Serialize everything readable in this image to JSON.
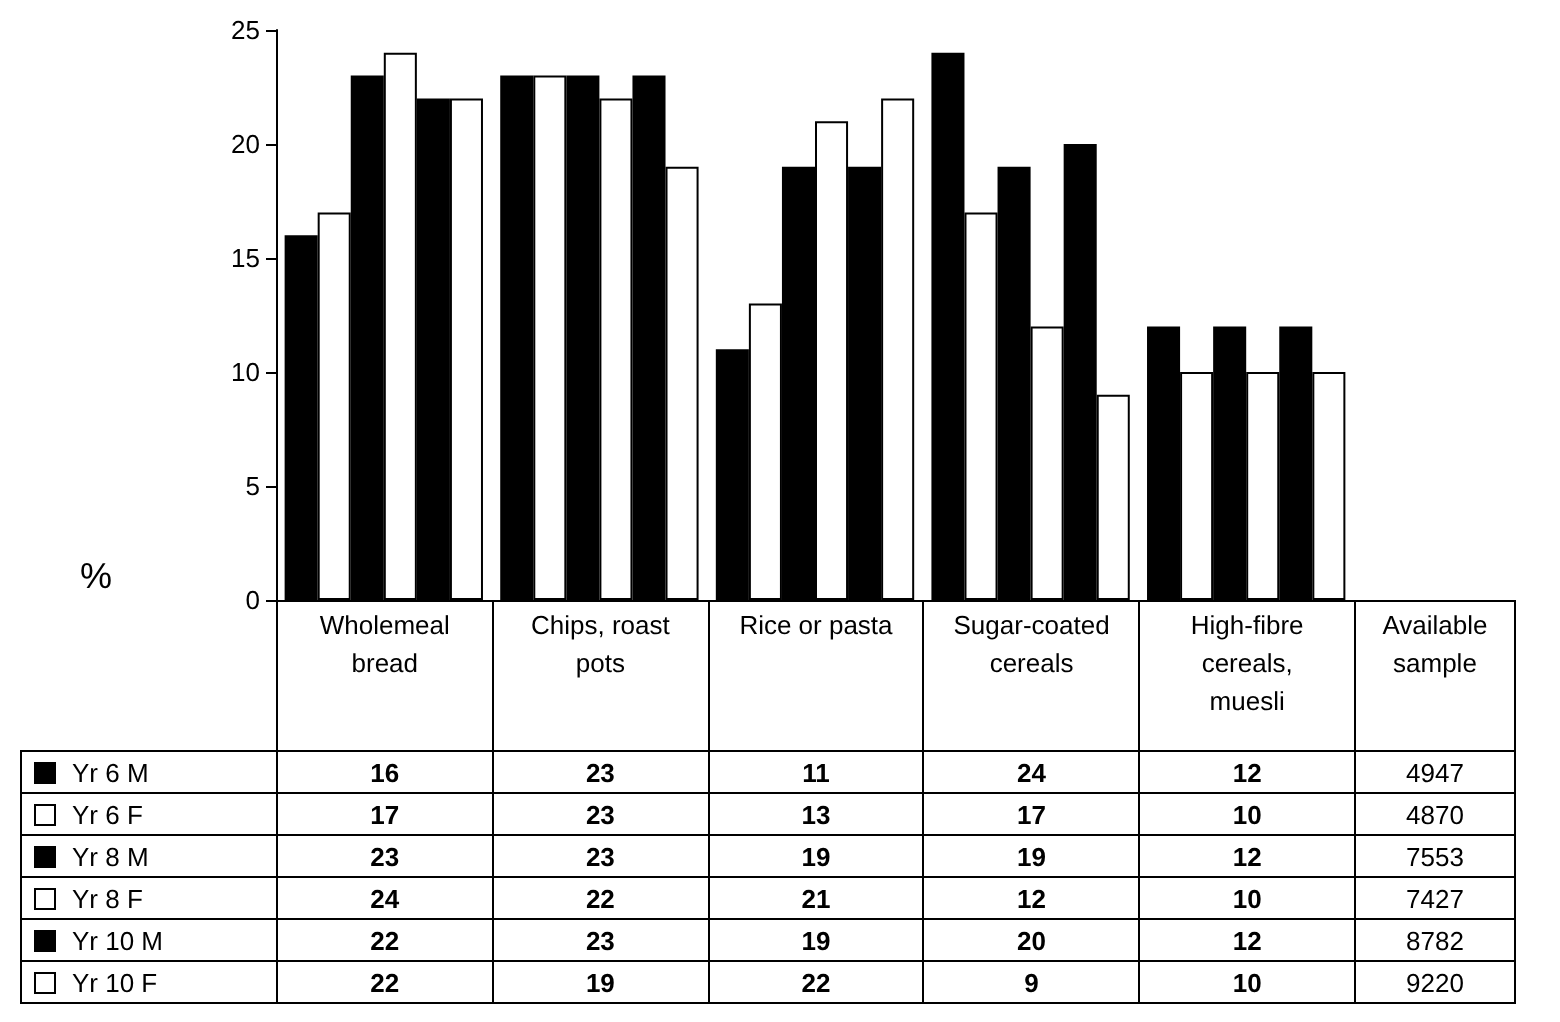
{
  "chart_data": {
    "type": "bar",
    "ylabel": "%",
    "categories": [
      "Wholemeal bread",
      "Chips, roast pots",
      "Rice or pasta",
      "Sugar-coated cereals",
      "High-fibre cereals, muesli"
    ],
    "series": [
      {
        "name": "Yr 6 M",
        "color": "#000000",
        "values": [
          16,
          23,
          11,
          24,
          12
        ]
      },
      {
        "name": "Yr 6 F",
        "color": "#ffffff",
        "values": [
          17,
          23,
          13,
          17,
          10
        ]
      },
      {
        "name": "Yr 8 M",
        "color": "#000000",
        "values": [
          23,
          23,
          19,
          19,
          12
        ]
      },
      {
        "name": "Yr 8 F",
        "color": "#ffffff",
        "values": [
          24,
          22,
          21,
          12,
          10
        ]
      },
      {
        "name": "Yr 10 M",
        "color": "#000000",
        "values": [
          22,
          23,
          19,
          20,
          12
        ]
      },
      {
        "name": "Yr 10 F",
        "color": "#ffffff",
        "values": [
          22,
          19,
          22,
          9,
          10
        ]
      }
    ],
    "ylim": [
      0,
      25
    ],
    "yticks": [
      0,
      5,
      10,
      15,
      20,
      25
    ],
    "grid": false,
    "legend": "bottom left",
    "data_labels": true,
    "annotations": [
      "Available sample",
      "4947",
      "4870",
      "7553",
      "7427",
      "8782",
      "9220"
    ]
  }
}
